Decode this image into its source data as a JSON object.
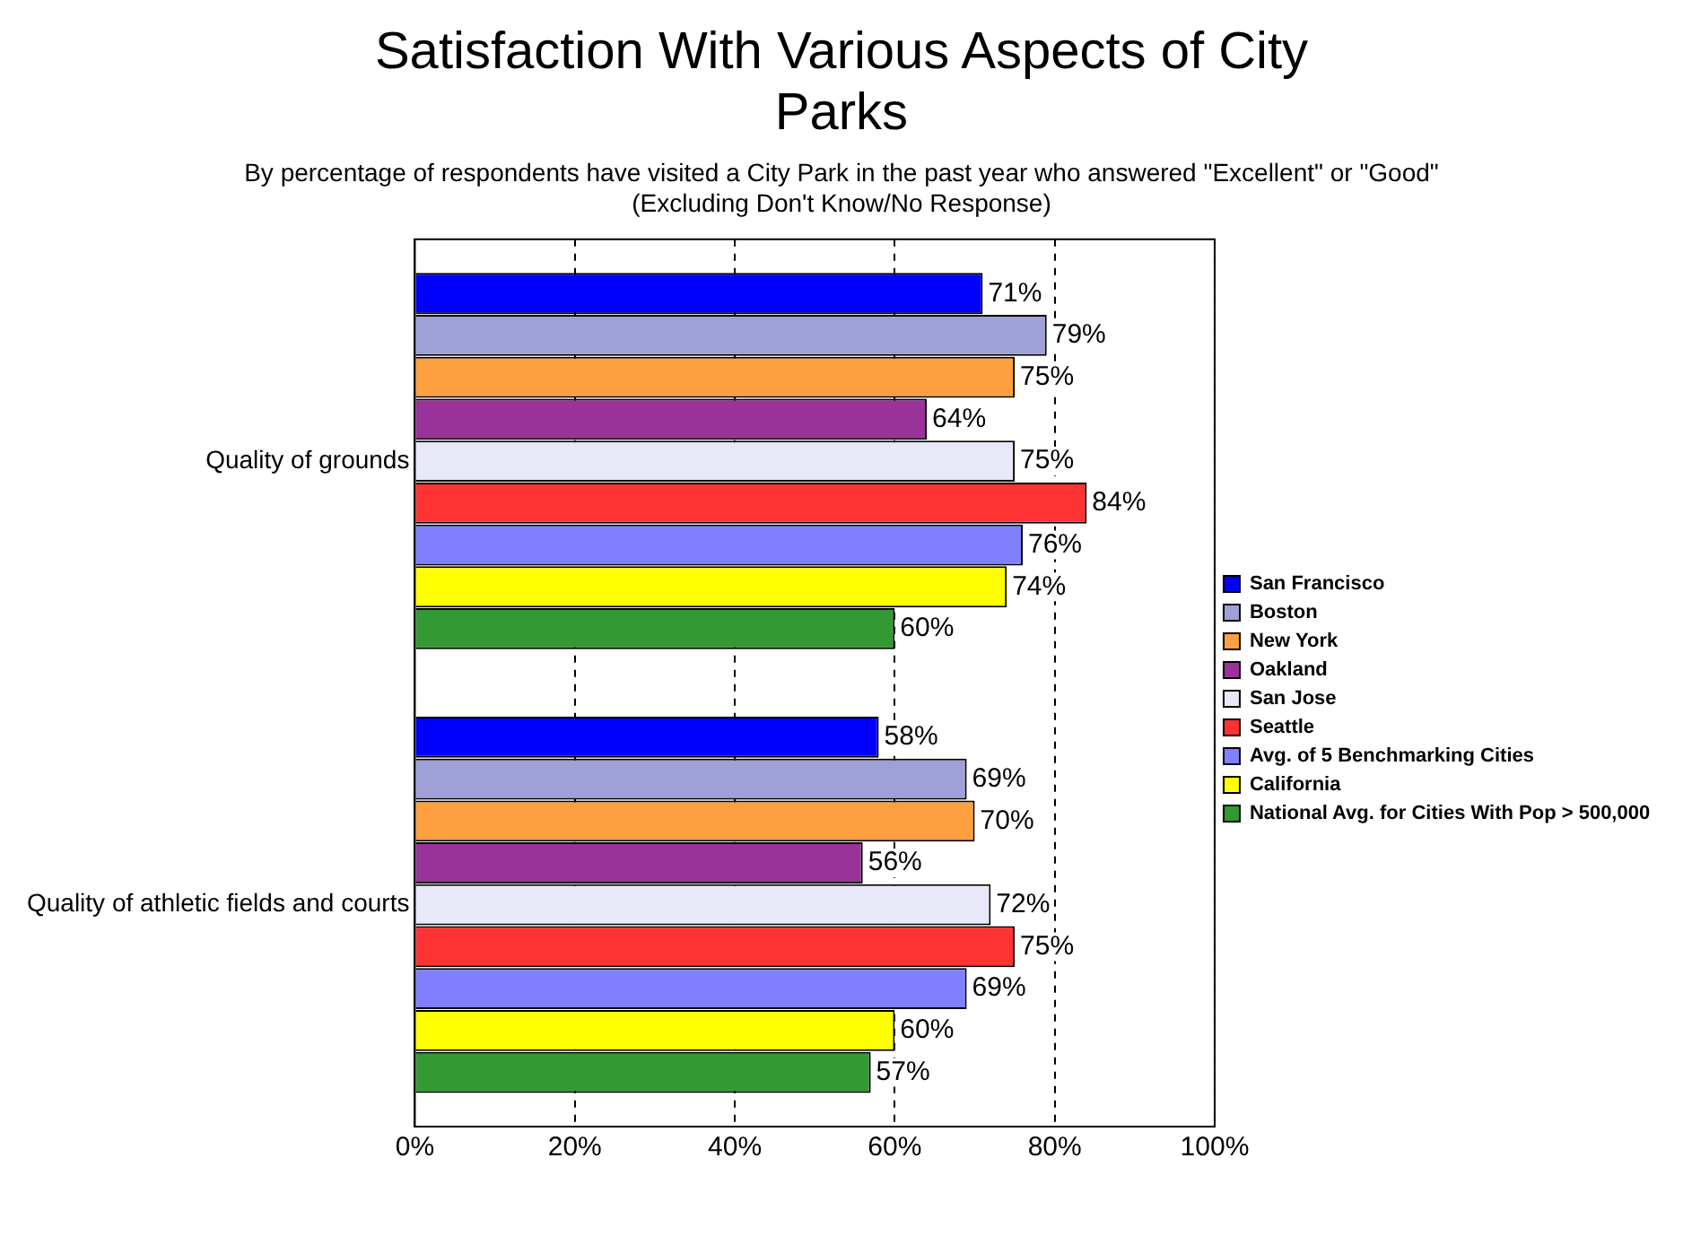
{
  "chart_data": {
    "type": "bar",
    "orientation": "horizontal",
    "title": "Satisfaction With Various Aspects of City Parks",
    "subtitle": "By percentage of respondents have visited a City Park in the past year who answered \"Excellent\" or \"Good\"\n(Excluding Don't Know/No Response)",
    "categories": [
      "Quality of grounds",
      "Quality of athletic fields and courts"
    ],
    "series": [
      {
        "name": "San Francisco",
        "color": "#0000ff",
        "values": [
          71,
          58
        ],
        "value_labels": [
          "71%",
          "58%"
        ]
      },
      {
        "name": "Boston",
        "color": "#a0a0d8",
        "values": [
          79,
          69
        ],
        "value_labels": [
          "79%",
          "69%"
        ]
      },
      {
        "name": "New York",
        "color": "#ffa040",
        "values": [
          75,
          70
        ],
        "value_labels": [
          "75%",
          "70%"
        ]
      },
      {
        "name": "Oakland",
        "color": "#993399",
        "values": [
          64,
          56
        ],
        "value_labels": [
          "64%",
          "56%"
        ]
      },
      {
        "name": "San Jose",
        "color": "#e8e8f8",
        "values": [
          75,
          72
        ],
        "value_labels": [
          "75%",
          "72%"
        ]
      },
      {
        "name": "Seattle",
        "color": "#ff3333",
        "values": [
          84,
          75
        ],
        "value_labels": [
          "84%",
          "75%"
        ]
      },
      {
        "name": "Avg. of 5 Benchmarking Cities",
        "color": "#8080ff",
        "values": [
          76,
          69
        ],
        "value_labels": [
          "76%",
          "69%"
        ]
      },
      {
        "name": "California",
        "color": "#ffff00",
        "values": [
          74,
          60
        ],
        "value_labels": [
          "74%",
          "60%"
        ]
      },
      {
        "name": "National Avg. for Cities With Pop > 500,000",
        "color": "#339933",
        "values": [
          60,
          57
        ],
        "value_labels": [
          "60%",
          "57%"
        ]
      }
    ],
    "xlim": [
      0,
      100
    ],
    "xticks": [
      {
        "value": 0,
        "label": "0%"
      },
      {
        "value": 20,
        "label": "20%"
      },
      {
        "value": 40,
        "label": "40%"
      },
      {
        "value": 60,
        "label": "60%"
      },
      {
        "value": 80,
        "label": "80%"
      },
      {
        "value": 100,
        "label": "100%"
      }
    ],
    "grid": "x",
    "legend": "right"
  }
}
